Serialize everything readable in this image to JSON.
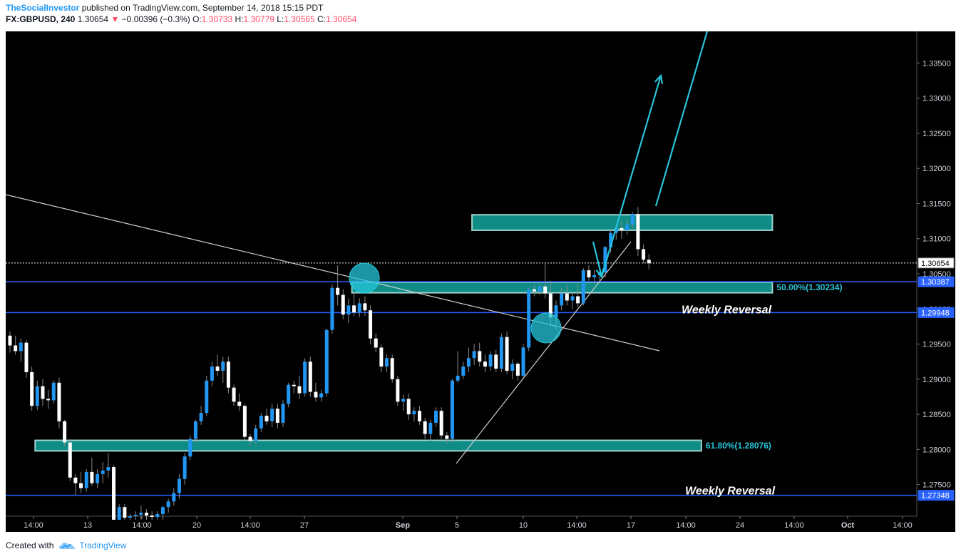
{
  "header": {
    "author": "TheSocialInvestor",
    "published": " published on TradingView.com, September 14, 2018 15:15 PDT",
    "symbol": "FX:GBPUSD, 240",
    "last": "1.30654",
    "change_arrow": "▼",
    "change": "−0.00396 (−0.3%)",
    "o_label": "O:",
    "o": "1.30733",
    "h_label": "H:",
    "h": "1.30779",
    "l_label": "L:",
    "l": "1.30565",
    "c_label": "C:",
    "c": "1.30654"
  },
  "footer": {
    "created": "Created with",
    "brand": "TradingView",
    "logo_icon": "tradingview-cloud-icon"
  },
  "colors": {
    "background": "#000000",
    "up_candle": "#2196f3",
    "down_candle": "#ffffff",
    "zone_fill": "#0e8c85",
    "zone_border": "#9fd4d0",
    "level_line": "#2962ff",
    "arrow": "#26c6da",
    "trend_line": "#d0d0d0",
    "axis_text": "#d1d4dc"
  },
  "chart_data": {
    "type": "candlestick",
    "symbol": "FX:GBPUSD",
    "interval": "240",
    "ylim": [
      1.2705,
      1.3395
    ],
    "y_ticks": [
      "1.33500",
      "1.33000",
      "1.32500",
      "1.32000",
      "1.31500",
      "1.31000",
      "1.30500",
      "1.30000",
      "1.29500",
      "1.29000",
      "1.28500",
      "1.28000",
      "1.27500"
    ],
    "y_tick_values": [
      1.335,
      1.33,
      1.325,
      1.32,
      1.315,
      1.31,
      1.305,
      1.3,
      1.295,
      1.29,
      1.285,
      1.28,
      1.275
    ],
    "x_ticks": [
      "14:00",
      "13",
      "14:00",
      "20",
      "14:00",
      "27",
      "Sep",
      "5",
      "10",
      "14:00",
      "17",
      "14:00",
      "24",
      "14:00",
      "Oct",
      "14:00"
    ],
    "price_badges": [
      {
        "label": "1.30654",
        "value": 1.30654,
        "style": "last"
      },
      {
        "label": "1.30387",
        "value": 1.30387,
        "style": "level"
      },
      {
        "label": "1.29948",
        "value": 1.29948,
        "style": "level"
      },
      {
        "label": "1.27348",
        "value": 1.27348,
        "style": "level"
      }
    ],
    "horizontal_levels": [
      1.30387,
      1.29948,
      1.27348
    ],
    "last_price": 1.30654,
    "zones": [
      {
        "from": 1.3112,
        "to": 1.3134,
        "start": 85,
        "end": 140
      },
      {
        "from": 1.3023,
        "to": 1.3038,
        "start": 63,
        "end": 140,
        "label": "50.00%(1.30234)"
      },
      {
        "from": 1.2798,
        "to": 1.2813,
        "start": 5,
        "end": 127,
        "label": "61.80%(1.28076)"
      }
    ],
    "annotations": [
      {
        "text": "Weekly Reversal",
        "value": 1.3
      },
      {
        "text": "Weekly Reversal",
        "value": 1.2742
      }
    ],
    "candles": [
      [
        1.2962,
        1.2968,
        1.2938,
        1.2948
      ],
      [
        1.2948,
        1.2962,
        1.2935,
        1.294
      ],
      [
        1.294,
        1.2958,
        1.2925,
        1.2952
      ],
      [
        1.2952,
        1.2956,
        1.2902,
        1.291
      ],
      [
        1.291,
        1.2918,
        1.2855,
        1.2862
      ],
      [
        1.2862,
        1.2898,
        1.2856,
        1.289
      ],
      [
        1.289,
        1.29,
        1.2862,
        1.2872
      ],
      [
        1.2872,
        1.2885,
        1.2858,
        1.287
      ],
      [
        1.287,
        1.2898,
        1.2865,
        1.2895
      ],
      [
        1.2895,
        1.2902,
        1.283,
        1.284
      ],
      [
        1.284,
        1.2842,
        1.2805,
        1.281
      ],
      [
        1.281,
        1.2815,
        1.2755,
        1.276
      ],
      [
        1.276,
        1.2765,
        1.2735,
        1.2752
      ],
      [
        1.2752,
        1.2768,
        1.2738,
        1.2745
      ],
      [
        1.2745,
        1.2772,
        1.274,
        1.2768
      ],
      [
        1.2768,
        1.2788,
        1.2748,
        1.2752
      ],
      [
        1.2752,
        1.2772,
        1.2745,
        1.2765
      ],
      [
        1.2765,
        1.2782,
        1.2752,
        1.277
      ],
      [
        1.277,
        1.2795,
        1.276,
        1.2775
      ],
      [
        1.2775,
        1.2778,
        1.27,
        1.27
      ],
      [
        1.27,
        1.2722,
        1.27,
        1.2718
      ],
      [
        1.2718,
        1.2722,
        1.27,
        1.2703
      ],
      [
        1.2703,
        1.2708,
        1.27,
        1.2705
      ],
      [
        1.2705,
        1.2712,
        1.27,
        1.2707
      ],
      [
        1.2707,
        1.272,
        1.27,
        1.271
      ],
      [
        1.271,
        1.2715,
        1.27,
        1.2706
      ],
      [
        1.2706,
        1.2712,
        1.27,
        1.2704
      ],
      [
        1.2704,
        1.2712,
        1.27,
        1.2708
      ],
      [
        1.2708,
        1.272,
        1.27,
        1.2718
      ],
      [
        1.2718,
        1.273,
        1.271,
        1.2726
      ],
      [
        1.2726,
        1.2745,
        1.272,
        1.2738
      ],
      [
        1.2738,
        1.2765,
        1.273,
        1.2758
      ],
      [
        1.2758,
        1.2795,
        1.275,
        1.279
      ],
      [
        1.279,
        1.282,
        1.2785,
        1.2815
      ],
      [
        1.2815,
        1.2842,
        1.281,
        1.284
      ],
      [
        1.284,
        1.2862,
        1.2835,
        1.2852
      ],
      [
        1.2852,
        1.2905,
        1.2848,
        1.2898
      ],
      [
        1.2898,
        1.2925,
        1.289,
        1.2918
      ],
      [
        1.2918,
        1.2935,
        1.2905,
        1.2912
      ],
      [
        1.2912,
        1.2932,
        1.2895,
        1.2925
      ],
      [
        1.2925,
        1.2932,
        1.288,
        1.2888
      ],
      [
        1.2888,
        1.2892,
        1.2862,
        1.2868
      ],
      [
        1.2868,
        1.288,
        1.2855,
        1.2862
      ],
      [
        1.2862,
        1.2865,
        1.2812,
        1.2818
      ],
      [
        1.2818,
        1.2822,
        1.2805,
        1.2812
      ],
      [
        1.2812,
        1.2835,
        1.2808,
        1.283
      ],
      [
        1.283,
        1.2852,
        1.2825,
        1.2848
      ],
      [
        1.2848,
        1.2858,
        1.2835,
        1.284
      ],
      [
        1.284,
        1.2865,
        1.2832,
        1.2858
      ],
      [
        1.2858,
        1.2865,
        1.283,
        1.2838
      ],
      [
        1.2838,
        1.287,
        1.2832,
        1.2865
      ],
      [
        1.2865,
        1.2895,
        1.286,
        1.2892
      ],
      [
        1.2892,
        1.2898,
        1.288,
        1.289
      ],
      [
        1.289,
        1.2905,
        1.2872,
        1.288
      ],
      [
        1.288,
        1.293,
        1.2875,
        1.2925
      ],
      [
        1.2925,
        1.2932,
        1.2875,
        1.2882
      ],
      [
        1.2882,
        1.2895,
        1.2868,
        1.2874
      ],
      [
        1.2874,
        1.2885,
        1.2868,
        1.288
      ],
      [
        1.288,
        1.2972,
        1.2875,
        1.297
      ],
      [
        1.297,
        1.3035,
        1.2965,
        1.303
      ],
      [
        1.303,
        1.3062,
        1.3005,
        1.302
      ],
      [
        1.302,
        1.3028,
        1.2985,
        1.2992
      ],
      [
        1.2992,
        1.3015,
        1.298,
        1.3005
      ],
      [
        1.3005,
        1.3022,
        1.299,
        1.2995
      ],
      [
        1.2995,
        1.3015,
        1.2988,
        1.3008
      ],
      [
        1.3008,
        1.3018,
        1.299,
        1.2998
      ],
      [
        1.2998,
        1.3005,
        1.295,
        1.2958
      ],
      [
        1.2958,
        1.2965,
        1.2938,
        1.2945
      ],
      [
        1.2945,
        1.295,
        1.291,
        1.2918
      ],
      [
        1.2918,
        1.2935,
        1.291,
        1.293
      ],
      [
        1.293,
        1.2935,
        1.2895,
        1.29
      ],
      [
        1.29,
        1.2905,
        1.2862,
        1.2868
      ],
      [
        1.2868,
        1.2878,
        1.2855,
        1.2872
      ],
      [
        1.2872,
        1.288,
        1.2842,
        1.285
      ],
      [
        1.285,
        1.286,
        1.284,
        1.2855
      ],
      [
        1.2855,
        1.2862,
        1.2835,
        1.284
      ],
      [
        1.284,
        1.2845,
        1.2815,
        1.2822
      ],
      [
        1.2822,
        1.2842,
        1.2812,
        1.2838
      ],
      [
        1.2838,
        1.286,
        1.2832,
        1.2855
      ],
      [
        1.2855,
        1.286,
        1.2815,
        1.282
      ],
      [
        1.282,
        1.2825,
        1.2808,
        1.2815
      ],
      [
        1.2815,
        1.29,
        1.281,
        1.2898
      ],
      [
        1.2898,
        1.294,
        1.2895,
        1.2905
      ],
      [
        1.2905,
        1.2925,
        1.29,
        1.2918
      ],
      [
        1.2918,
        1.2945,
        1.291,
        1.293
      ],
      [
        1.293,
        1.295,
        1.292,
        1.294
      ],
      [
        1.294,
        1.2952,
        1.2918,
        1.2925
      ],
      [
        1.2925,
        1.2935,
        1.291,
        1.2918
      ],
      [
        1.2918,
        1.294,
        1.2912,
        1.2935
      ],
      [
        1.2935,
        1.2942,
        1.291,
        1.2915
      ],
      [
        1.2915,
        1.2965,
        1.291,
        1.296
      ],
      [
        1.296,
        1.2968,
        1.2908,
        1.2912
      ],
      [
        1.2912,
        1.2928,
        1.29,
        1.2922
      ],
      [
        1.2922,
        1.2925,
        1.2898,
        1.2905
      ],
      [
        1.2905,
        1.295,
        1.29,
        1.2945
      ],
      [
        1.2945,
        1.303,
        1.294,
        1.3028
      ],
      [
        1.3028,
        1.3035,
        1.3018,
        1.3025
      ],
      [
        1.3025,
        1.3035,
        1.302,
        1.3032
      ],
      [
        1.3032,
        1.3065,
        1.3015,
        1.3022
      ],
      [
        1.3022,
        1.304,
        1.2975,
        1.2988
      ],
      [
        1.2988,
        1.3012,
        1.297,
        1.3005
      ],
      [
        1.3005,
        1.303,
        1.2998,
        1.3022
      ],
      [
        1.3022,
        1.3035,
        1.3005,
        1.3012
      ],
      [
        1.3012,
        1.3022,
        1.3,
        1.3018
      ],
      [
        1.3018,
        1.3035,
        1.3002,
        1.3008
      ],
      [
        1.3008,
        1.3058,
        1.3005,
        1.3055
      ],
      [
        1.3055,
        1.3062,
        1.304,
        1.3045
      ],
      [
        1.3045,
        1.3055,
        1.3035,
        1.3048
      ],
      [
        1.3048,
        1.3058,
        1.304,
        1.3052
      ],
      [
        1.3052,
        1.309,
        1.3045,
        1.3088
      ],
      [
        1.3088,
        1.3112,
        1.308,
        1.3108
      ],
      [
        1.3108,
        1.312,
        1.3098,
        1.3115
      ],
      [
        1.3115,
        1.3125,
        1.31,
        1.3112
      ],
      [
        1.3112,
        1.3128,
        1.3105,
        1.312
      ],
      [
        1.312,
        1.3138,
        1.3115,
        1.3135
      ],
      [
        1.3135,
        1.3145,
        1.3075,
        1.3085
      ],
      [
        1.3085,
        1.3092,
        1.3065,
        1.307
      ],
      [
        1.307,
        1.3078,
        1.3056,
        1.3065
      ]
    ]
  }
}
